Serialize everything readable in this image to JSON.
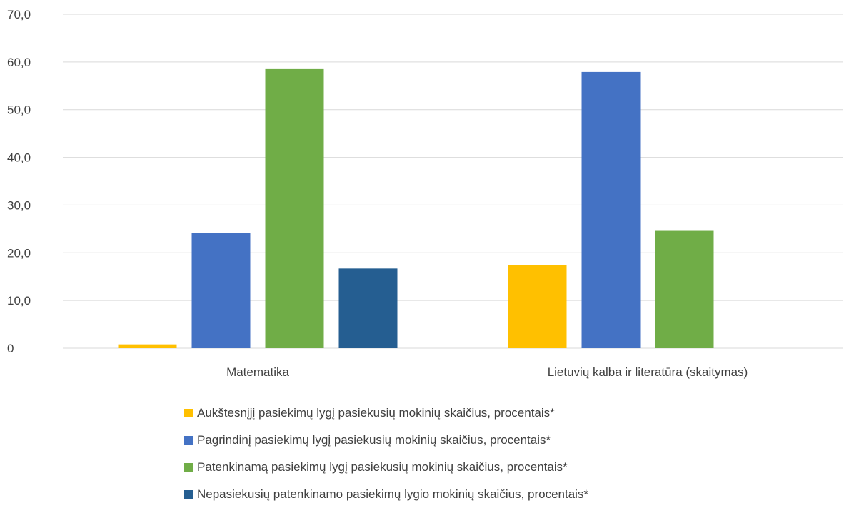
{
  "chart_data": {
    "type": "bar",
    "categories": [
      "Matematika",
      "Lietuvių kalba ir literatūra (skaitymas)"
    ],
    "series": [
      {
        "name": "Aukštesnįjį pasiekimų lygį pasiekusių mokinių skaičius, procentais*",
        "color": "#FFC000",
        "values": [
          0.8,
          17.4
        ]
      },
      {
        "name": "Pagrindinį pasiekimų lygį pasiekusių mokinių skaičius, procentais*",
        "color": "#4472C4",
        "values": [
          24.1,
          57.9
        ]
      },
      {
        "name": "Patenkinamą pasiekimų lygį pasiekusių mokinių skaičius, procentais*",
        "color": "#70AD47",
        "values": [
          58.5,
          24.6
        ]
      },
      {
        "name": "Nepasiekusių patenkinamo pasiekimų lygio mokinių skaičius, procentais*",
        "color": "#255E91",
        "values": [
          16.7,
          0
        ]
      }
    ],
    "y_ticks": [
      "0",
      "10,0",
      "20,0",
      "30,0",
      "40,0",
      "50,0",
      "60,0",
      "70,0"
    ],
    "ylim": [
      0,
      70
    ],
    "grid": true,
    "legend_position": "bottom",
    "title": "",
    "xlabel": "",
    "ylabel": ""
  }
}
